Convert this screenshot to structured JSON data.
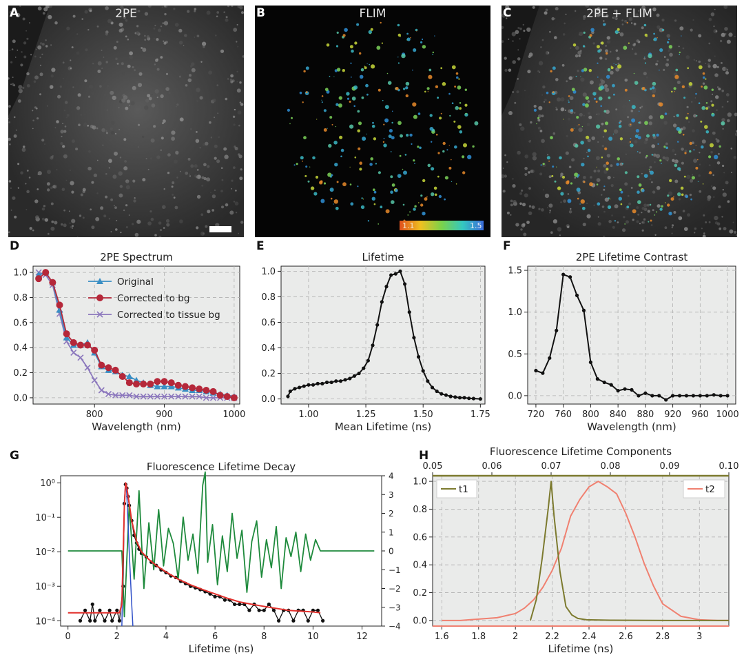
{
  "panels": {
    "a": {
      "letter": "A",
      "title": "2PE"
    },
    "b": {
      "letter": "B",
      "title": "FLIM",
      "colorbar_min": "1.1",
      "colorbar_max": "1.5"
    },
    "c": {
      "letter": "C",
      "title": "2PE + FLIM"
    },
    "d": {
      "letter": "D"
    },
    "e": {
      "letter": "E"
    },
    "f": {
      "letter": "F"
    },
    "g": {
      "letter": "G"
    },
    "h": {
      "letter": "H"
    }
  },
  "colors": {
    "original": "#3a8fc4",
    "corrected_bg": "#b5283a",
    "corrected_tissue": "#8c78bd",
    "black": "#111111",
    "residual": "#1e8a3c",
    "fit": "#e3312d",
    "irf": "#3050c8",
    "t1": "#7c7a2e",
    "t2": "#f08070",
    "plot_bg": "#eaebea"
  },
  "chart_data": [
    {
      "id": "d",
      "type": "line",
      "title": "2PE Spectrum",
      "xlabel": "Wavelength (nm)",
      "ylabel": "",
      "xlim": [
        712,
        1008
      ],
      "ylim": [
        -0.05,
        1.05
      ],
      "xticks": [
        800,
        900,
        1000
      ],
      "yticks": [
        0.0,
        0.2,
        0.4,
        0.6,
        0.8,
        1.0
      ],
      "legend": "top-right",
      "x": [
        720,
        730,
        740,
        750,
        760,
        770,
        780,
        790,
        800,
        810,
        820,
        830,
        840,
        850,
        860,
        870,
        880,
        890,
        900,
        910,
        920,
        930,
        940,
        950,
        960,
        970,
        980,
        990,
        1000
      ],
      "series": [
        {
          "name": "Original",
          "marker": "triangle",
          "values": [
            0.98,
            1.0,
            0.92,
            0.7,
            0.48,
            0.42,
            0.42,
            0.44,
            0.36,
            0.25,
            0.22,
            0.21,
            0.18,
            0.17,
            0.14,
            0.12,
            0.1,
            0.09,
            0.09,
            0.09,
            0.08,
            0.07,
            0.06,
            0.06,
            0.05,
            0.04,
            0.03,
            0.02,
            0.01
          ]
        },
        {
          "name": "Corrected to bg",
          "marker": "circle",
          "values": [
            0.95,
            1.0,
            0.92,
            0.74,
            0.51,
            0.44,
            0.42,
            0.42,
            0.38,
            0.26,
            0.24,
            0.22,
            0.17,
            0.12,
            0.11,
            0.11,
            0.11,
            0.13,
            0.13,
            0.12,
            0.1,
            0.09,
            0.08,
            0.07,
            0.06,
            0.05,
            0.02,
            0.01,
            0.0
          ]
        },
        {
          "name": "Corrected to tissue bg",
          "marker": "x",
          "values": [
            1.0,
            0.98,
            0.9,
            0.67,
            0.45,
            0.36,
            0.32,
            0.24,
            0.14,
            0.06,
            0.03,
            0.02,
            0.02,
            0.02,
            0.01,
            0.01,
            0.01,
            0.01,
            0.01,
            0.01,
            0.01,
            0.01,
            0.01,
            0.01,
            0.0,
            0.0,
            0.0,
            0.0,
            0.0
          ]
        }
      ]
    },
    {
      "id": "e",
      "type": "line",
      "title": "Lifetime",
      "xlabel": "Mean Lifetime (ns)",
      "ylabel": "",
      "xlim": [
        0.88,
        1.77
      ],
      "ylim": [
        -0.04,
        1.04
      ],
      "xticks": [
        1.0,
        1.25,
        1.5,
        1.75
      ],
      "xtick_labels": [
        "1.00",
        "1.25",
        "1.50",
        "1.75"
      ],
      "yticks": [
        0.0,
        0.2,
        0.4,
        0.6,
        0.8,
        1.0
      ],
      "x": [
        0.91,
        0.92,
        0.94,
        0.96,
        0.98,
        1.0,
        1.02,
        1.04,
        1.06,
        1.08,
        1.1,
        1.12,
        1.14,
        1.16,
        1.18,
        1.2,
        1.22,
        1.24,
        1.26,
        1.28,
        1.3,
        1.32,
        1.34,
        1.36,
        1.38,
        1.4,
        1.42,
        1.44,
        1.46,
        1.48,
        1.5,
        1.52,
        1.54,
        1.56,
        1.58,
        1.6,
        1.62,
        1.64,
        1.66,
        1.68,
        1.7,
        1.72,
        1.75
      ],
      "series": [
        {
          "name": "",
          "values": [
            0.02,
            0.06,
            0.08,
            0.09,
            0.1,
            0.11,
            0.11,
            0.12,
            0.12,
            0.13,
            0.13,
            0.14,
            0.14,
            0.15,
            0.16,
            0.18,
            0.2,
            0.24,
            0.3,
            0.42,
            0.58,
            0.76,
            0.88,
            0.97,
            0.98,
            1.0,
            0.9,
            0.68,
            0.48,
            0.33,
            0.22,
            0.14,
            0.09,
            0.06,
            0.04,
            0.03,
            0.02,
            0.015,
            0.01,
            0.01,
            0.005,
            0.003,
            0.0
          ]
        }
      ]
    },
    {
      "id": "f",
      "type": "line",
      "title": "2PE Lifetime Contrast",
      "xlabel": "Wavelength (nm)",
      "ylabel": "",
      "xlim": [
        708,
        1012
      ],
      "ylim": [
        -0.1,
        1.55
      ],
      "xticks": [
        720,
        760,
        800,
        840,
        880,
        920,
        960,
        1000
      ],
      "yticks": [
        0.0,
        0.5,
        1.0,
        1.5
      ],
      "yticks_labels": [
        "0.0",
        "0.5",
        "1.0",
        "1.5"
      ],
      "x": [
        720,
        730,
        740,
        750,
        760,
        770,
        780,
        790,
        800,
        810,
        820,
        830,
        840,
        850,
        860,
        870,
        880,
        890,
        900,
        910,
        920,
        930,
        940,
        950,
        960,
        970,
        980,
        990,
        1000
      ],
      "series": [
        {
          "name": "",
          "values": [
            0.3,
            0.27,
            0.45,
            0.78,
            1.45,
            1.42,
            1.2,
            1.02,
            0.4,
            0.2,
            0.16,
            0.13,
            0.06,
            0.08,
            0.07,
            0.0,
            0.03,
            0.0,
            0.0,
            -0.05,
            0.0,
            0.0,
            0.0,
            0.0,
            0.0,
            0.0,
            0.01,
            0.0,
            0.0
          ]
        }
      ]
    },
    {
      "id": "g",
      "type": "line",
      "title": "Fluorescence Lifetime Decay",
      "xlabel": "Lifetime (ns)",
      "ylabel": "",
      "xlim": [
        -0.3,
        12.8
      ],
      "ylim_log": [
        7e-05,
        1.6
      ],
      "y2lim": [
        -4,
        4
      ],
      "xticks": [
        0,
        2,
        4,
        6,
        8,
        10,
        12
      ],
      "yticks_log": [
        0.0001,
        0.001,
        0.01,
        0.1,
        1
      ],
      "ytick_labels": [
        "10⁻⁴",
        "10⁻³",
        "10⁻²",
        "10⁻¹",
        "10⁰"
      ],
      "y2ticks": [
        -4,
        -3,
        -2,
        -1,
        0,
        1,
        2,
        3,
        4
      ],
      "y2tick_labels": [
        "−4",
        "−3",
        "−2",
        "−1",
        "0",
        "1",
        "2",
        "3",
        "4"
      ],
      "fit_x": [
        0.0,
        2.1,
        2.2,
        2.3,
        2.35,
        2.4,
        2.5,
        2.6,
        2.8,
        3.0,
        3.3,
        3.6,
        4.0,
        4.5,
        5.0,
        5.5,
        6.0,
        6.5,
        7.0,
        7.5,
        8.0,
        9.0,
        10.0,
        10.3
      ],
      "fit_y": [
        0.00017,
        0.00017,
        0.0003,
        0.2,
        1.0,
        0.75,
        0.25,
        0.08,
        0.02,
        0.01,
        0.006,
        0.004,
        0.0026,
        0.0016,
        0.0011,
        0.0008,
        0.0006,
        0.00045,
        0.00035,
        0.0003,
        0.00026,
        0.0002,
        0.00018,
        0.00017
      ],
      "irf_x": [
        2.2,
        2.3,
        2.35,
        2.4,
        2.5,
        2.6,
        2.65
      ],
      "irf_y": [
        7e-05,
        0.3,
        1.0,
        0.5,
        0.01,
        0.0003,
        7e-05
      ],
      "residual_x": [
        0.0,
        2.1,
        2.2,
        2.3,
        2.5,
        2.7,
        2.9,
        3.1,
        3.3,
        3.5,
        3.7,
        3.9,
        4.1,
        4.3,
        4.5,
        4.7,
        4.9,
        5.1,
        5.3,
        5.5,
        5.6,
        5.7,
        5.9,
        6.1,
        6.3,
        6.5,
        6.7,
        6.9,
        7.1,
        7.3,
        7.5,
        7.7,
        7.9,
        8.1,
        8.3,
        8.5,
        8.7,
        8.9,
        9.1,
        9.3,
        9.5,
        9.7,
        9.9,
        10.1,
        10.3,
        10.4,
        12.5
      ],
      "residual_y": [
        0,
        0,
        0,
        -3.5,
        2.5,
        -1.5,
        3.2,
        -2,
        1.5,
        -1,
        2.2,
        -0.8,
        1.2,
        0.4,
        -1.5,
        1.8,
        -0.5,
        0.9,
        -1.2,
        3.5,
        4.2,
        -0.6,
        1.4,
        -1.8,
        0.8,
        -1.1,
        2.0,
        -0.4,
        1.1,
        -2.2,
        0.5,
        1.6,
        -1.4,
        0.6,
        -0.9,
        1.3,
        -2.0,
        0.7,
        -0.3,
        1.0,
        -1.1,
        0.9,
        -0.5,
        0.6,
        0,
        0,
        0
      ],
      "data_x": [
        0.5,
        0.7,
        0.9,
        1.0,
        1.1,
        1.3,
        1.5,
        1.7,
        1.8,
        2.0,
        2.1,
        2.25,
        2.3,
        2.35,
        2.4,
        2.45,
        2.5,
        2.6,
        2.7,
        2.8,
        2.9,
        3.0,
        3.2,
        3.4,
        3.6,
        3.8,
        4.0,
        4.2,
        4.4,
        4.6,
        4.8,
        5.0,
        5.2,
        5.4,
        5.6,
        5.8,
        6.0,
        6.2,
        6.4,
        6.6,
        6.8,
        7.0,
        7.2,
        7.4,
        7.6,
        7.8,
        8.0,
        8.2,
        8.4,
        8.6,
        8.8,
        9.0,
        9.2,
        9.4,
        9.6,
        9.8,
        10.0,
        10.2,
        10.4
      ],
      "data_y": [
        0.0001,
        0.0002,
        0.0001,
        0.0003,
        0.0001,
        0.0002,
        0.0001,
        0.0002,
        0.0001,
        0.0002,
        0.0001,
        0.001,
        0.25,
        0.9,
        0.7,
        0.4,
        0.22,
        0.08,
        0.03,
        0.018,
        0.012,
        0.009,
        0.007,
        0.005,
        0.004,
        0.003,
        0.0025,
        0.002,
        0.0018,
        0.0014,
        0.0012,
        0.001,
        0.0009,
        0.0008,
        0.0007,
        0.0006,
        0.0005,
        0.0005,
        0.0004,
        0.0004,
        0.0003,
        0.0003,
        0.0003,
        0.0002,
        0.0003,
        0.0002,
        0.0002,
        0.0003,
        0.0002,
        0.0001,
        0.0002,
        0.0002,
        0.0001,
        0.0002,
        0.0002,
        0.0001,
        0.0002,
        0.0002,
        0.0001
      ]
    },
    {
      "id": "h",
      "type": "line",
      "title": "Fluorescence Lifetime Components",
      "xlabel": "Lifetime (ns)",
      "ylabel": "",
      "xlim": [
        1.55,
        3.16
      ],
      "ylim": [
        -0.04,
        1.04
      ],
      "xticks": [
        1.6,
        1.8,
        2.0,
        2.2,
        2.4,
        2.6,
        2.8,
        3.0
      ],
      "yticks": [
        0.0,
        0.2,
        0.4,
        0.6,
        0.8,
        1.0
      ],
      "top_xlim": [
        0.05,
        0.1
      ],
      "top_xticks": [
        0.05,
        0.06,
        0.07,
        0.08,
        0.09,
        0.1
      ],
      "top_xtick_labels": [
        "0.05",
        "0.06",
        "0.07",
        "0.08",
        "0.09",
        "0.10"
      ],
      "legend": [
        "top-left",
        "top-right"
      ],
      "series": [
        {
          "name": "t1",
          "axis": "top",
          "x": [
            0.0665,
            0.0675,
            0.0685,
            0.0695,
            0.07,
            0.0705,
            0.0715,
            0.0725,
            0.0735,
            0.0745,
            0.076,
            0.08,
            0.09,
            0.1
          ],
          "values": [
            0.0,
            0.15,
            0.45,
            0.8,
            1.0,
            0.75,
            0.35,
            0.1,
            0.04,
            0.015,
            0.005,
            0.002,
            0.0,
            0.0
          ]
        },
        {
          "name": "t2",
          "axis": "bottom",
          "x": [
            1.6,
            1.7,
            1.8,
            1.9,
            2.0,
            2.05,
            2.1,
            2.15,
            2.2,
            2.25,
            2.3,
            2.35,
            2.4,
            2.45,
            2.5,
            2.55,
            2.6,
            2.65,
            2.7,
            2.75,
            2.8,
            2.9,
            3.0,
            3.1,
            3.16
          ],
          "values": [
            0.0,
            0.0,
            0.01,
            0.02,
            0.05,
            0.09,
            0.15,
            0.24,
            0.36,
            0.52,
            0.75,
            0.87,
            0.96,
            1.0,
            0.96,
            0.91,
            0.77,
            0.6,
            0.41,
            0.25,
            0.12,
            0.03,
            0.005,
            0.0,
            0.0
          ]
        }
      ]
    }
  ]
}
